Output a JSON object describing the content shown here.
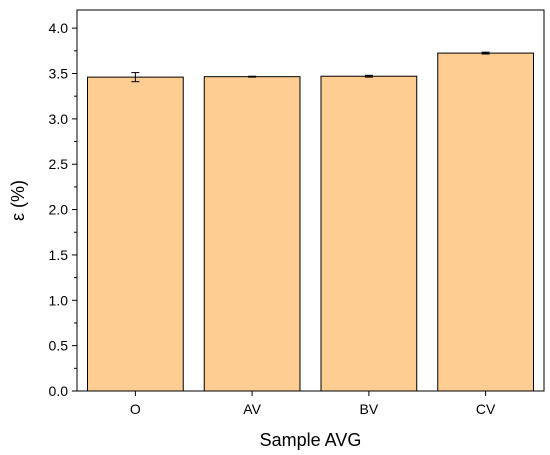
{
  "chart_data": {
    "type": "bar",
    "title": "",
    "xlabel": "Sample AVG",
    "ylabel": "ε (%)",
    "categories": [
      "O",
      "AV",
      "BV",
      "CV"
    ],
    "values": [
      3.46,
      3.465,
      3.47,
      3.725
    ],
    "errors": [
      0.05,
      0.005,
      0.01,
      0.01
    ],
    "ylim": [
      0,
      4.2
    ],
    "yticks": [
      0.0,
      0.5,
      1.0,
      1.5,
      2.0,
      2.5,
      3.0,
      3.5,
      4.0
    ],
    "ytick_labels": [
      "0.0",
      "0.5",
      "1.0",
      "1.5",
      "2.0",
      "2.5",
      "3.0",
      "3.5",
      "4.0"
    ],
    "grid": false,
    "legend": "none",
    "bar_color": "#fdcd91",
    "bar_edge_color": "#000000"
  }
}
